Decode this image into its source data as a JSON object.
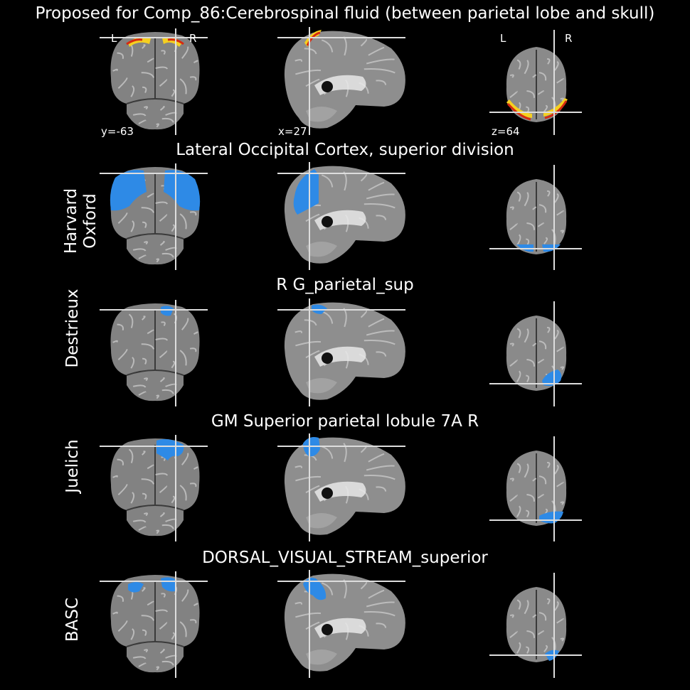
{
  "main_title": "Proposed for Comp_86:Cerebrospinal fluid (between parietal lobe and skull)",
  "coords": {
    "y": "y=-63",
    "x": "x=27",
    "z": "z=64"
  },
  "orientation": {
    "left": "L",
    "right": "R"
  },
  "rows": [
    {
      "atlas": "Harvard Oxford",
      "atlas_line1": "Harvard",
      "atlas_line2": "Oxford",
      "region": "Lateral Occipital Cortex, superior division"
    },
    {
      "atlas": "Destrieux",
      "region": "R G_parietal_sup"
    },
    {
      "atlas": "Juelich",
      "region": "GM Superior parietal lobule 7A R"
    },
    {
      "atlas": "BASC",
      "region": "DORSAL_VISUAL_STREAM_superior"
    }
  ],
  "colors": {
    "background": "#000000",
    "overlay": "#2e8ae6",
    "heat": "#f5d020",
    "brain": "#8a8a8a"
  }
}
